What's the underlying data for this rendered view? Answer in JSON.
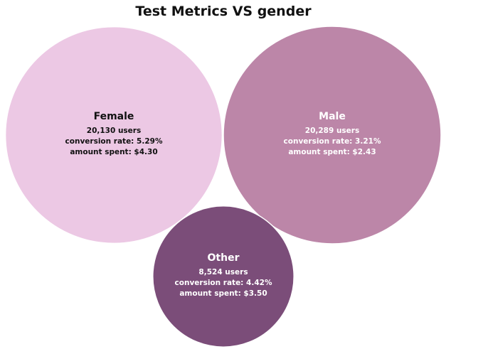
{
  "chart_data": {
    "type": "bubble",
    "title": "Test Metrics VS gender",
    "size_measure": "users",
    "bubbles": [
      {
        "name": "Female",
        "users": 20130,
        "users_label": "20,130 users",
        "conversion_rate": 5.29,
        "conversion_label": "conversion rate: 5.29%",
        "amount_spent": 4.3,
        "amount_label": "amount spent: $4.30",
        "color": "#ecc8e4",
        "text_color": "#111111"
      },
      {
        "name": "Male",
        "users": 20289,
        "users_label": "20,289 users",
        "conversion_rate": 3.21,
        "conversion_label": "conversion rate: 3.21%",
        "amount_spent": 2.43,
        "amount_label": "amount spent: $2.43",
        "color": "#bc86a8",
        "text_color": "#ffffff"
      },
      {
        "name": "Other",
        "users": 8524,
        "users_label": "8,524 users",
        "conversion_rate": 4.42,
        "conversion_label": "conversion rate: 4.42%",
        "amount_spent": 3.5,
        "amount_label": "amount spent: $3.50",
        "color": "#7b4d79",
        "text_color": "#ffffff"
      }
    ]
  }
}
